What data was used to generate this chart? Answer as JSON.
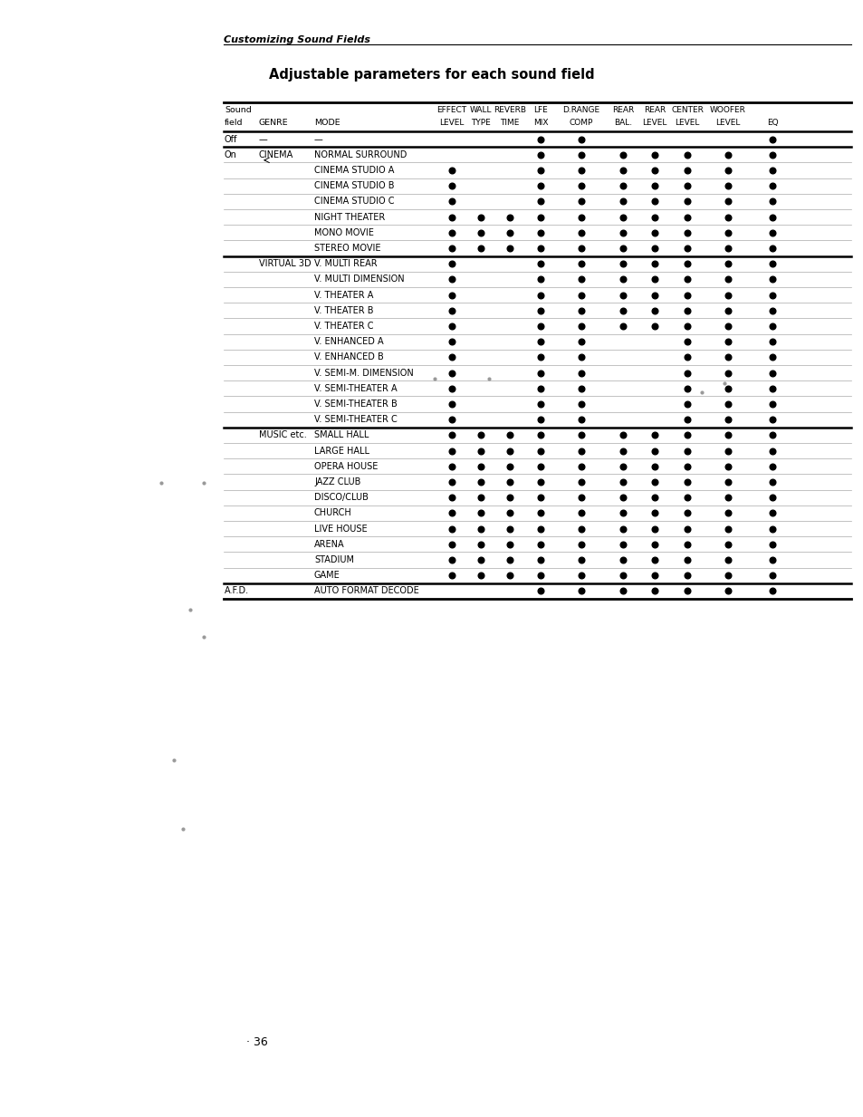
{
  "title": "Adjustable parameters for each sound field",
  "page_header": "Customizing Sound Fields",
  "page_number": "36",
  "rows": [
    {
      "sound_field": "Off",
      "genre": "—",
      "mode": "—",
      "dots": [
        0,
        0,
        0,
        1,
        1,
        0,
        0,
        0,
        0,
        1
      ]
    },
    {
      "sound_field": "On",
      "genre": "CINEMA",
      "mode": "NORMAL SURROUND",
      "dots": [
        0,
        0,
        0,
        1,
        1,
        1,
        1,
        1,
        1,
        1
      ],
      "genre_arrow": true
    },
    {
      "sound_field": "",
      "genre": "",
      "mode": "CINEMA STUDIO A",
      "dots": [
        1,
        0,
        0,
        1,
        1,
        1,
        1,
        1,
        1,
        1
      ]
    },
    {
      "sound_field": "",
      "genre": "",
      "mode": "CINEMA STUDIO B",
      "dots": [
        1,
        0,
        0,
        1,
        1,
        1,
        1,
        1,
        1,
        1
      ]
    },
    {
      "sound_field": "",
      "genre": "",
      "mode": "CINEMA STUDIO C",
      "dots": [
        1,
        0,
        0,
        1,
        1,
        1,
        1,
        1,
        1,
        1
      ]
    },
    {
      "sound_field": "",
      "genre": "",
      "mode": "NIGHT THEATER",
      "dots": [
        1,
        1,
        1,
        1,
        1,
        1,
        1,
        1,
        1,
        1
      ]
    },
    {
      "sound_field": "",
      "genre": "",
      "mode": "MONO MOVIE",
      "dots": [
        1,
        1,
        1,
        1,
        1,
        1,
        1,
        1,
        1,
        1
      ]
    },
    {
      "sound_field": "",
      "genre": "",
      "mode": "STEREO MOVIE",
      "dots": [
        1,
        1,
        1,
        1,
        1,
        1,
        1,
        1,
        1,
        1
      ]
    },
    {
      "sound_field": "",
      "genre": "VIRTUAL 3D",
      "mode": "V. MULTI REAR",
      "dots": [
        1,
        0,
        0,
        1,
        1,
        1,
        1,
        1,
        1,
        1
      ]
    },
    {
      "sound_field": "",
      "genre": "",
      "mode": "V. MULTI DIMENSION",
      "dots": [
        1,
        0,
        0,
        1,
        1,
        1,
        1,
        1,
        1,
        1
      ]
    },
    {
      "sound_field": "",
      "genre": "",
      "mode": "V. THEATER A",
      "dots": [
        1,
        0,
        0,
        1,
        1,
        1,
        1,
        1,
        1,
        1
      ]
    },
    {
      "sound_field": "",
      "genre": "",
      "mode": "V. THEATER B",
      "dots": [
        1,
        0,
        0,
        1,
        1,
        1,
        1,
        1,
        1,
        1
      ]
    },
    {
      "sound_field": "",
      "genre": "",
      "mode": "V. THEATER C",
      "dots": [
        1,
        0,
        0,
        1,
        1,
        1,
        1,
        1,
        1,
        1
      ]
    },
    {
      "sound_field": "",
      "genre": "",
      "mode": "V. ENHANCED A",
      "dots": [
        1,
        0,
        0,
        1,
        1,
        0,
        0,
        1,
        1,
        1
      ]
    },
    {
      "sound_field": "",
      "genre": "",
      "mode": "V. ENHANCED B",
      "dots": [
        1,
        0,
        0,
        1,
        1,
        0,
        0,
        1,
        1,
        1
      ]
    },
    {
      "sound_field": "",
      "genre": "",
      "mode": "V. SEMI-M. DIMENSION",
      "dots": [
        1,
        0,
        0,
        1,
        1,
        0,
        0,
        1,
        1,
        1
      ]
    },
    {
      "sound_field": "",
      "genre": "",
      "mode": "V. SEMI-THEATER A",
      "dots": [
        1,
        0,
        0,
        1,
        1,
        0,
        0,
        1,
        1,
        1
      ]
    },
    {
      "sound_field": "",
      "genre": "",
      "mode": "V. SEMI-THEATER B",
      "dots": [
        1,
        0,
        0,
        1,
        1,
        0,
        0,
        1,
        1,
        1
      ]
    },
    {
      "sound_field": "",
      "genre": "",
      "mode": "V. SEMI-THEATER C",
      "dots": [
        1,
        0,
        0,
        1,
        1,
        0,
        0,
        1,
        1,
        1
      ]
    },
    {
      "sound_field": "",
      "genre": "MUSIC etc.",
      "mode": "SMALL HALL",
      "dots": [
        1,
        1,
        1,
        1,
        1,
        1,
        1,
        1,
        1,
        1
      ]
    },
    {
      "sound_field": "",
      "genre": "",
      "mode": "LARGE HALL",
      "dots": [
        1,
        1,
        1,
        1,
        1,
        1,
        1,
        1,
        1,
        1
      ]
    },
    {
      "sound_field": "",
      "genre": "",
      "mode": "OPERA HOUSE",
      "dots": [
        1,
        1,
        1,
        1,
        1,
        1,
        1,
        1,
        1,
        1
      ]
    },
    {
      "sound_field": "",
      "genre": "",
      "mode": "JAZZ CLUB",
      "dots": [
        1,
        1,
        1,
        1,
        1,
        1,
        1,
        1,
        1,
        1
      ]
    },
    {
      "sound_field": "",
      "genre": "",
      "mode": "DISCO/CLUB",
      "dots": [
        1,
        1,
        1,
        1,
        1,
        1,
        1,
        1,
        1,
        1
      ]
    },
    {
      "sound_field": "",
      "genre": "",
      "mode": "CHURCH",
      "dots": [
        1,
        1,
        1,
        1,
        1,
        1,
        1,
        1,
        1,
        1
      ]
    },
    {
      "sound_field": "",
      "genre": "",
      "mode": "LIVE HOUSE",
      "dots": [
        1,
        1,
        1,
        1,
        1,
        1,
        1,
        1,
        1,
        1
      ]
    },
    {
      "sound_field": "",
      "genre": "",
      "mode": "ARENA",
      "dots": [
        1,
        1,
        1,
        1,
        1,
        1,
        1,
        1,
        1,
        1
      ]
    },
    {
      "sound_field": "",
      "genre": "",
      "mode": "STADIUM",
      "dots": [
        1,
        1,
        1,
        1,
        1,
        1,
        1,
        1,
        1,
        1
      ]
    },
    {
      "sound_field": "",
      "genre": "",
      "mode": "GAME",
      "dots": [
        1,
        1,
        1,
        1,
        1,
        1,
        1,
        1,
        1,
        1
      ]
    },
    {
      "sound_field": "A.F.D.",
      "genre": "",
      "mode": "AUTO FORMAT DECODE",
      "dots": [
        0,
        0,
        0,
        1,
        1,
        1,
        1,
        1,
        1,
        1
      ]
    }
  ],
  "thick_after_rows": [
    0,
    7,
    18,
    28
  ],
  "background_color": "#ffffff",
  "text_color": "#000000",
  "dot_color": "#000000"
}
